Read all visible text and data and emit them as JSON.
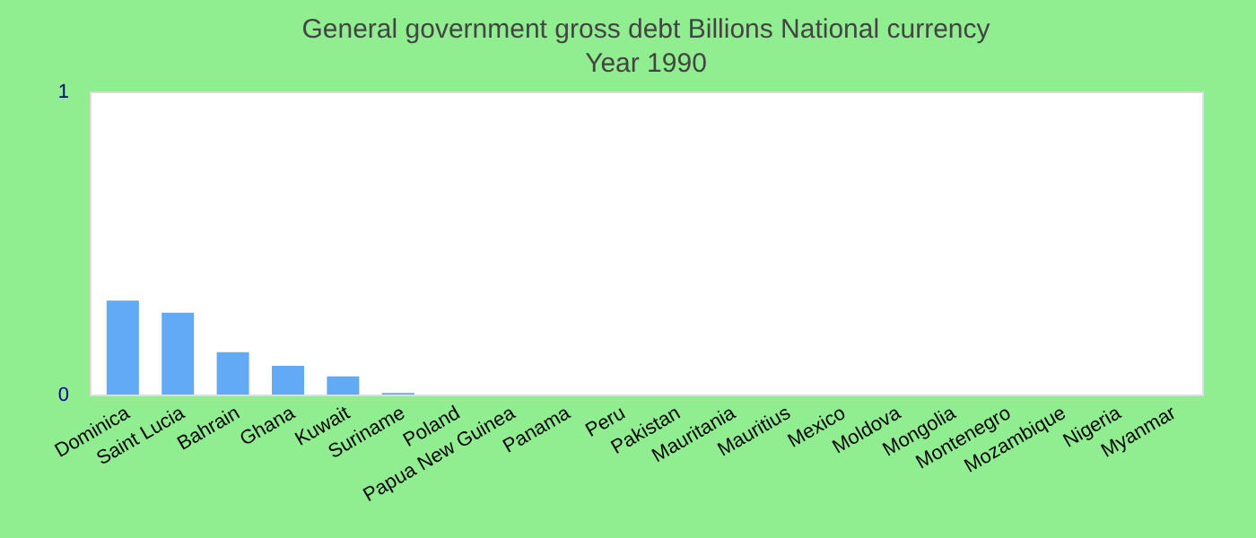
{
  "chart_data": {
    "type": "bar",
    "title": "General government gross debt Billions National currency",
    "subtitle": "Year 1990",
    "categories": [
      "Dominica",
      "Saint Lucia",
      "Bahrain",
      "Ghana",
      "Kuwait",
      "Suriname",
      "Poland",
      "Papua New Guinea",
      "Panama",
      "Peru",
      "Pakistan",
      "Mauritania",
      "Mauritius",
      "Mexico",
      "Moldova",
      "Mongolia",
      "Montenegro",
      "Mozambique",
      "Nigeria",
      "Myanmar"
    ],
    "values": [
      0.31,
      0.27,
      0.14,
      0.095,
      0.06,
      0.005,
      0,
      0,
      0,
      0,
      0,
      0,
      0,
      0,
      0,
      0,
      0,
      0,
      0,
      0
    ],
    "color": "#62aaf4",
    "ylim": [
      0,
      1
    ],
    "yticks": [
      0,
      1
    ],
    "grid": false
  }
}
